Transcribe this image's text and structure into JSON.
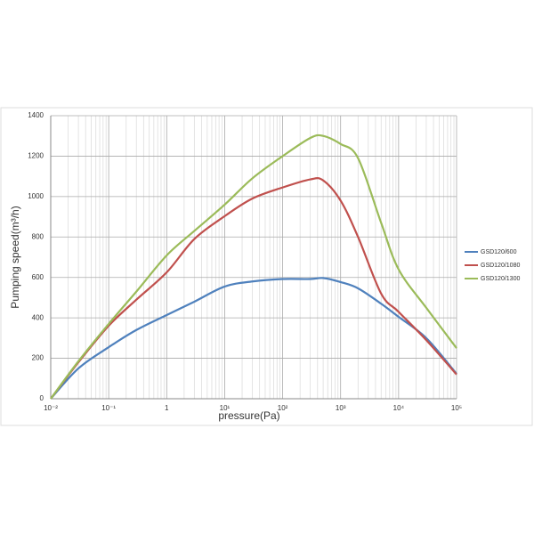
{
  "chart_data": {
    "type": "line",
    "xlabel": "pressure(Pa)",
    "ylabel": "Pumping speed(m³/h)",
    "xscale": "log",
    "grid": true,
    "legend": "right",
    "xlim": [
      0.01,
      100000
    ],
    "ylim": [
      0,
      1400
    ],
    "xticks": [
      {
        "value": 0.01,
        "label": "10⁻²"
      },
      {
        "value": 0.1,
        "label": "10⁻¹"
      },
      1,
      {
        "value": 10,
        "label": "10¹"
      },
      {
        "value": 100,
        "label": "10²"
      },
      {
        "value": 1000,
        "label": "10³"
      },
      {
        "value": 10000,
        "label": "10⁴"
      },
      {
        "value": 100000,
        "label": "10⁵"
      }
    ],
    "yticks": [
      0,
      200,
      400,
      600,
      800,
      1000,
      1200,
      1400
    ],
    "x": [
      0.01,
      0.03,
      0.1,
      0.3,
      1,
      3,
      10,
      30,
      100,
      300,
      500,
      1000,
      2000,
      5000,
      10000,
      30000,
      100000
    ],
    "series": [
      {
        "name": "GSD120/600",
        "color": "#4f81bd",
        "values": [
          0,
          150,
          255,
          340,
          414,
          480,
          555,
          580,
          592,
          592,
          597,
          577,
          546,
          470,
          405,
          300,
          123
        ]
      },
      {
        "name": "GSD120/1080",
        "color": "#c0504d",
        "values": [
          0,
          180,
          361,
          490,
          625,
          790,
          903,
          990,
          1045,
          1085,
          1080,
          980,
          800,
          520,
          430,
          290,
          120
        ]
      },
      {
        "name": "GSD120/1300",
        "color": "#9bbb59",
        "values": [
          0,
          185,
          370,
          530,
          709,
          830,
          960,
          1090,
          1200,
          1290,
          1300,
          1260,
          1190,
          870,
          640,
          450,
          250
        ]
      }
    ]
  }
}
